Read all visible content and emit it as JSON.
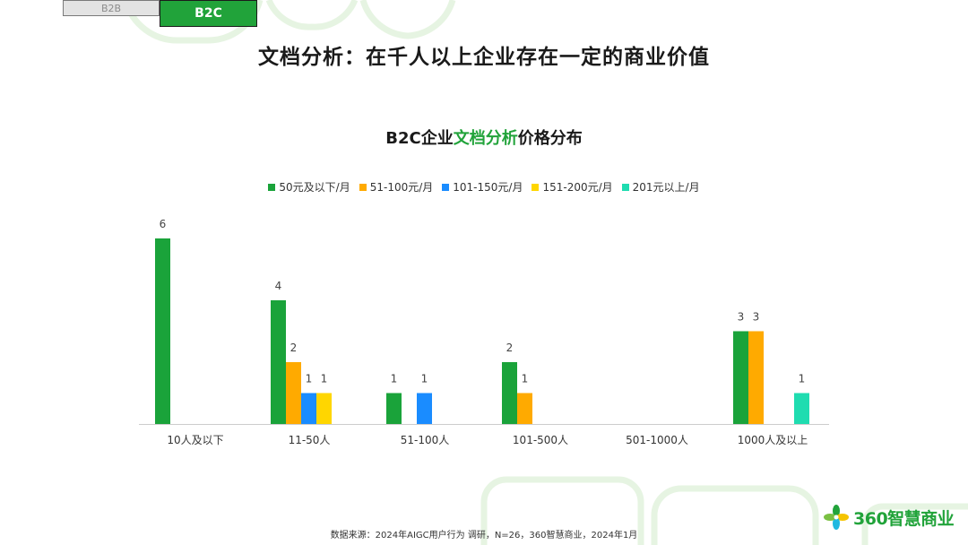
{
  "tabs": [
    {
      "label": "B2B"
    },
    {
      "label": "B2C"
    }
  ],
  "page_title": "文档分析：在千人以上企业存在一定的商业价值",
  "chart_title_parts": {
    "prefix": "B2C企业",
    "highlight": "文档分析",
    "suffix": "价格分布"
  },
  "colors": {
    "brand": "#21a33a",
    "series": [
      "#1aa33a",
      "#ffaa00",
      "#1a8cff",
      "#ffd600",
      "#1fdcb0"
    ]
  },
  "chart_data": {
    "type": "bar",
    "title": "B2C企业文档分析价格分布",
    "categories": [
      "10人及以下",
      "11-50人",
      "51-100人",
      "101-500人",
      "501-1000人",
      "1000人及以上"
    ],
    "series": [
      {
        "name": "50元及以下/月",
        "values": [
          6,
          4,
          1,
          2,
          0,
          3
        ]
      },
      {
        "name": "51-100元/月",
        "values": [
          0,
          2,
          0,
          1,
          0,
          3
        ]
      },
      {
        "name": "101-150元/月",
        "values": [
          0,
          1,
          1,
          0,
          0,
          0
        ]
      },
      {
        "name": "151-200元/月",
        "values": [
          0,
          1,
          0,
          0,
          0,
          0
        ]
      },
      {
        "name": "201元以上/月",
        "values": [
          0,
          0,
          0,
          0,
          0,
          1
        ]
      }
    ],
    "ylim": [
      0,
      6
    ],
    "grid": false,
    "legend_position": "top"
  },
  "footnote": "数据来源：2024年AIGC用户行为 调研，N=26，360智慧商业，2024年1月",
  "logo": {
    "text": "360智慧商业",
    "icon": "pinwheel-logo-icon"
  }
}
